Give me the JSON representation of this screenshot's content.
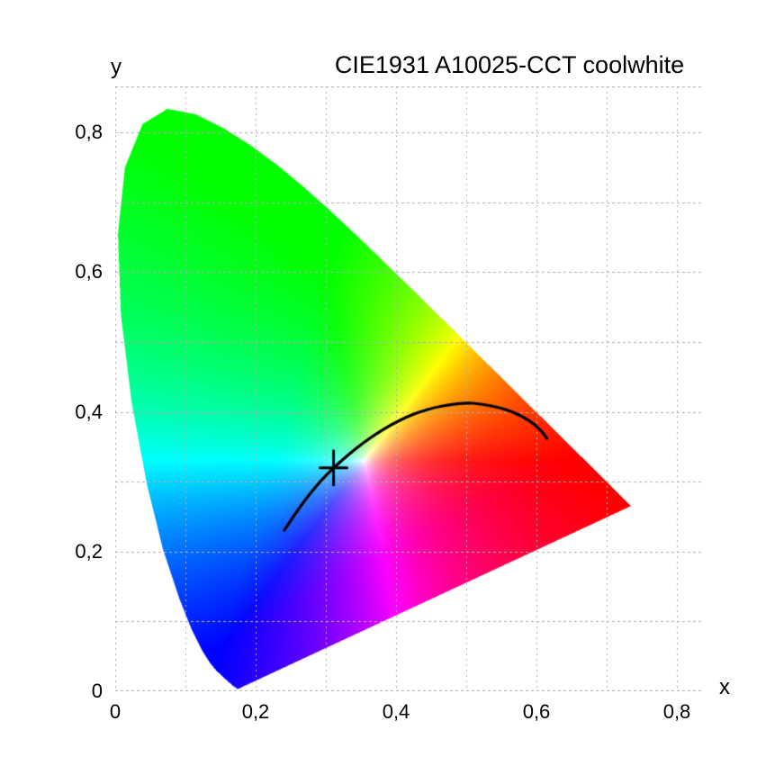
{
  "title": "CIE1931 A10025-CCT coolwhite",
  "chart_data": {
    "type": "chromaticity_diagram",
    "title": "CIE1931 A10025-CCT coolwhite",
    "xlabel": "x",
    "ylabel": "y",
    "xlim": [
      0,
      0.8385
    ],
    "ylim": [
      0,
      0.866
    ],
    "grid": true,
    "grid_step": 0.1,
    "grid_color": "#aeaeae",
    "background": "#ffffff",
    "white_point": [
      0.355,
      0.33
    ],
    "x_ticks": [
      {
        "v": 0.0,
        "label": "0"
      },
      {
        "v": 0.2,
        "label": "0,2"
      },
      {
        "v": 0.4,
        "label": "0,4"
      },
      {
        "v": 0.6,
        "label": "0,6"
      },
      {
        "v": 0.8,
        "label": "0,8"
      }
    ],
    "y_ticks": [
      {
        "v": 0.0,
        "label": "0"
      },
      {
        "v": 0.2,
        "label": "0,2"
      },
      {
        "v": 0.4,
        "label": "0,4"
      },
      {
        "v": 0.6,
        "label": "0,6"
      },
      {
        "v": 0.8,
        "label": "0,8"
      }
    ],
    "spectral_locus": [
      [
        0.1741,
        0.003
      ],
      [
        0.1738,
        0.003
      ],
      [
        0.1733,
        0.0035
      ],
      [
        0.1726,
        0.0048
      ],
      [
        0.1714,
        0.0051
      ],
      [
        0.1689,
        0.0069
      ],
      [
        0.1644,
        0.0109
      ],
      [
        0.1566,
        0.0177
      ],
      [
        0.144,
        0.0297
      ],
      [
        0.1355,
        0.0399
      ],
      [
        0.1241,
        0.0578
      ],
      [
        0.1096,
        0.0868
      ],
      [
        0.0913,
        0.1327
      ],
      [
        0.0687,
        0.2007
      ],
      [
        0.0454,
        0.295
      ],
      [
        0.0235,
        0.4127
      ],
      [
        0.0082,
        0.5384
      ],
      [
        0.0039,
        0.6548
      ],
      [
        0.0139,
        0.7502
      ],
      [
        0.0389,
        0.812
      ],
      [
        0.0743,
        0.8338
      ],
      [
        0.1142,
        0.8262
      ],
      [
        0.1547,
        0.8059
      ],
      [
        0.1929,
        0.7816
      ],
      [
        0.2296,
        0.7543
      ],
      [
        0.2658,
        0.7243
      ],
      [
        0.3016,
        0.6923
      ],
      [
        0.3373,
        0.6589
      ],
      [
        0.3731,
        0.6245
      ],
      [
        0.4441,
        0.5547
      ],
      [
        0.5125,
        0.4866
      ],
      [
        0.5752,
        0.4242
      ],
      [
        0.627,
        0.3725
      ],
      [
        0.6658,
        0.334
      ],
      [
        0.6915,
        0.3083
      ],
      [
        0.7079,
        0.292
      ],
      [
        0.719,
        0.2809
      ],
      [
        0.726,
        0.274
      ],
      [
        0.73,
        0.27
      ],
      [
        0.7334,
        0.2666
      ],
      [
        0.7347,
        0.2653
      ]
    ],
    "planckian_locus": [
      [
        0.2407,
        0.2305
      ],
      [
        0.2584,
        0.2574
      ],
      [
        0.2761,
        0.2814
      ],
      [
        0.2937,
        0.3025
      ],
      [
        0.3114,
        0.3203
      ],
      [
        0.332,
        0.3388
      ],
      [
        0.3526,
        0.3553
      ],
      [
        0.3732,
        0.3697
      ],
      [
        0.3938,
        0.3821
      ],
      [
        0.4144,
        0.3924
      ],
      [
        0.435,
        0.4006
      ],
      [
        0.455,
        0.4063
      ],
      [
        0.475,
        0.41
      ],
      [
        0.499,
        0.4131
      ],
      [
        0.52,
        0.4116
      ],
      [
        0.545,
        0.4068
      ],
      [
        0.565,
        0.4005
      ],
      [
        0.5825,
        0.3922
      ],
      [
        0.5975,
        0.3818
      ],
      [
        0.608,
        0.3715
      ],
      [
        0.615,
        0.362
      ]
    ],
    "locus_line_color": "#000000",
    "marker": {
      "x": 0.311,
      "y": 0.32,
      "shape": "cross",
      "color": "#000000"
    }
  }
}
